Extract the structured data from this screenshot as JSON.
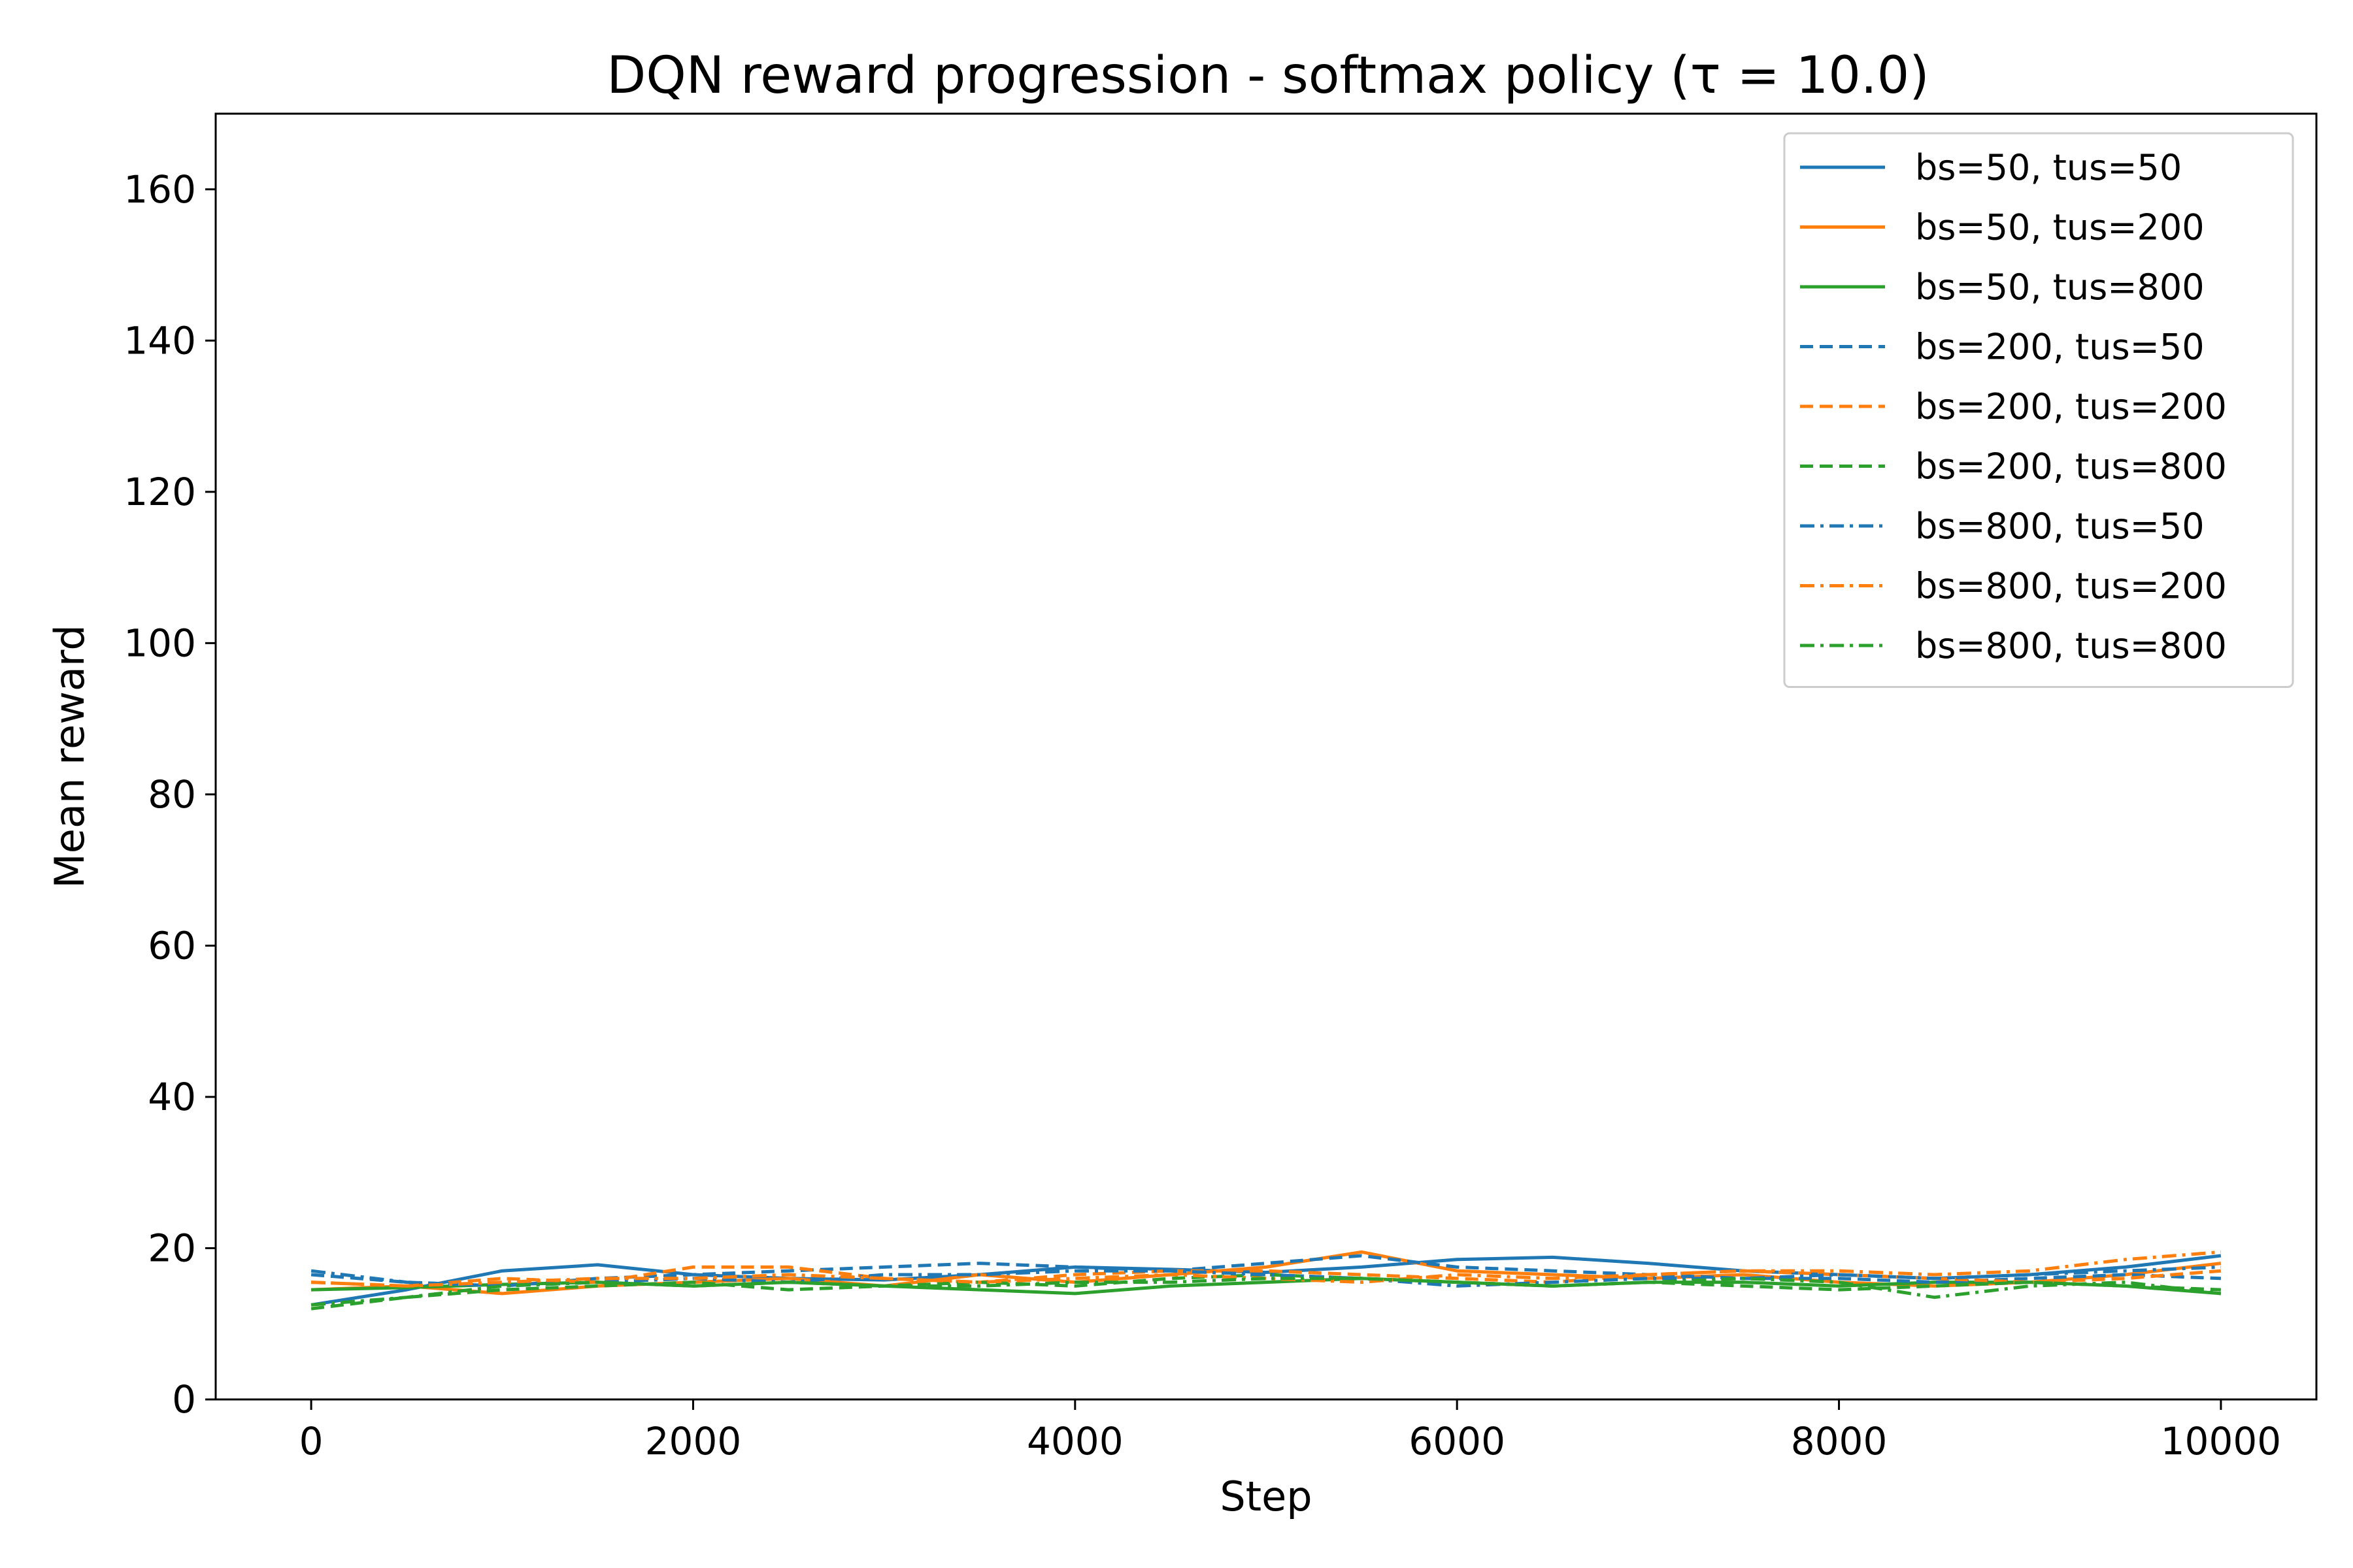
{
  "chart_data": {
    "type": "line",
    "title": "DQN reward progression - softmax policy (τ = 10.0)",
    "xlabel": "Step",
    "ylabel": "Mean reward",
    "xlim": [
      -500,
      10500
    ],
    "ylim": [
      0,
      170
    ],
    "xticks": [
      0,
      2000,
      4000,
      6000,
      8000,
      10000
    ],
    "yticks": [
      0,
      20,
      40,
      60,
      80,
      100,
      120,
      140,
      160
    ],
    "grid": false,
    "legend_position": "top-right",
    "x": [
      0,
      500,
      1000,
      1500,
      2000,
      2500,
      3000,
      3500,
      4000,
      4500,
      5000,
      5500,
      6000,
      6500,
      7000,
      7500,
      8000,
      8500,
      9000,
      9500,
      10000
    ],
    "series": [
      {
        "name": "bs=50, tus=50",
        "color": "#1f77b4",
        "dash": "solid",
        "values": [
          12.5,
          14.5,
          17.0,
          17.8,
          16.5,
          16.0,
          15.8,
          16.5,
          17.5,
          17.2,
          16.8,
          17.5,
          18.5,
          18.8,
          18.0,
          17.0,
          16.5,
          16.0,
          16.5,
          17.5,
          19.0
        ]
      },
      {
        "name": "bs=50, tus=200",
        "color": "#ff7f0e",
        "dash": "solid",
        "values": [
          14.5,
          15.0,
          14.0,
          15.0,
          15.5,
          16.0,
          15.0,
          16.5,
          15.5,
          16.5,
          17.5,
          19.5,
          17.0,
          16.5,
          16.0,
          16.5,
          15.5,
          15.0,
          15.5,
          16.5,
          18.0
        ]
      },
      {
        "name": "bs=50, tus=800",
        "color": "#2ca02c",
        "dash": "solid",
        "values": [
          14.5,
          14.8,
          15.2,
          15.5,
          15.0,
          15.5,
          15.0,
          14.5,
          14.0,
          15.0,
          15.5,
          16.0,
          15.5,
          15.0,
          15.5,
          15.5,
          15.0,
          15.5,
          15.5,
          15.0,
          14.0
        ]
      },
      {
        "name": "bs=200, tus=50",
        "color": "#1f77b4",
        "dash": "dashed",
        "values": [
          16.5,
          15.5,
          15.0,
          16.0,
          16.5,
          17.0,
          17.5,
          18.0,
          17.5,
          17.0,
          18.0,
          19.0,
          17.5,
          17.0,
          16.5,
          16.0,
          16.0,
          15.5,
          16.0,
          16.5,
          16.0
        ]
      },
      {
        "name": "bs=200, tus=200",
        "color": "#ff7f0e",
        "dash": "dashed",
        "values": [
          15.5,
          15.0,
          16.0,
          15.5,
          17.5,
          17.5,
          16.0,
          15.5,
          16.5,
          17.0,
          17.0,
          16.5,
          16.0,
          15.5,
          16.5,
          17.0,
          16.5,
          16.0,
          15.5,
          16.0,
          17.0
        ]
      },
      {
        "name": "bs=200, tus=800",
        "color": "#2ca02c",
        "dash": "dashed",
        "values": [
          12.0,
          13.5,
          14.5,
          15.0,
          15.5,
          14.5,
          15.0,
          15.5,
          15.0,
          16.0,
          16.5,
          16.0,
          15.5,
          15.0,
          15.5,
          15.0,
          14.5,
          15.0,
          15.5,
          15.0,
          14.5
        ]
      },
      {
        "name": "bs=800, tus=50",
        "color": "#1f77b4",
        "dash": "dashdot",
        "values": [
          17.0,
          15.5,
          15.0,
          15.5,
          16.0,
          15.5,
          16.5,
          16.5,
          17.0,
          17.0,
          16.5,
          16.0,
          15.0,
          15.5,
          16.0,
          16.0,
          16.5,
          16.0,
          16.5,
          17.0,
          17.5
        ]
      },
      {
        "name": "bs=800, tus=200",
        "color": "#ff7f0e",
        "dash": "dashdot",
        "values": [
          15.5,
          15.0,
          15.5,
          16.0,
          16.0,
          16.5,
          16.0,
          15.5,
          16.0,
          16.5,
          16.0,
          15.5,
          16.5,
          16.0,
          16.5,
          17.0,
          17.0,
          16.5,
          17.0,
          18.5,
          19.5
        ]
      },
      {
        "name": "bs=800, tus=800",
        "color": "#2ca02c",
        "dash": "dashdot",
        "values": [
          12.5,
          13.5,
          15.0,
          15.5,
          15.0,
          15.5,
          15.0,
          15.0,
          15.5,
          15.5,
          16.0,
          16.0,
          15.5,
          15.0,
          15.5,
          16.0,
          15.5,
          13.5,
          15.0,
          15.5,
          14.0
        ]
      }
    ]
  }
}
